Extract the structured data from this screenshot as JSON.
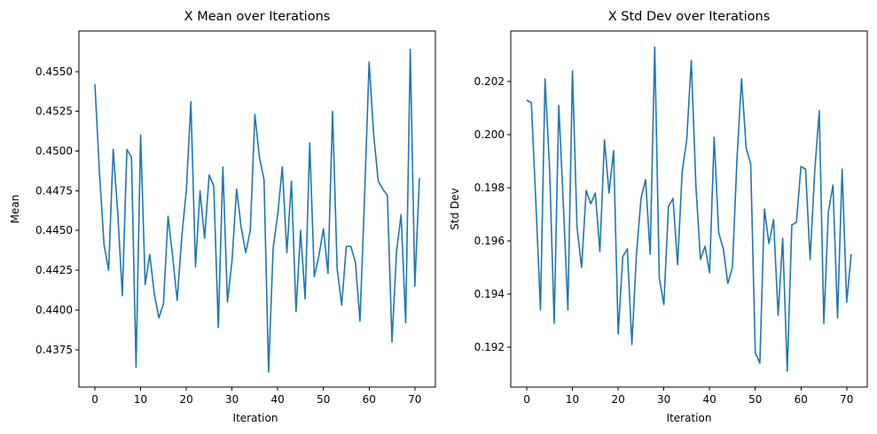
{
  "chart_data": [
    {
      "type": "line",
      "title": "X Mean over Iterations",
      "xlabel": "Iteration",
      "ylabel": "Mean",
      "xlim": [
        -3.5,
        74.5
      ],
      "ylim": [
        0.43515,
        0.45755
      ],
      "xticks": [
        0,
        10,
        20,
        30,
        40,
        50,
        60,
        70
      ],
      "yticks": [
        0.4375,
        0.44,
        0.4425,
        0.445,
        0.4475,
        0.45,
        0.4525,
        0.455
      ],
      "ytick_labels": [
        "0.4375",
        "0.4400",
        "0.4425",
        "0.4450",
        "0.4475",
        "0.4500",
        "0.4525",
        "0.4550"
      ],
      "color": "#1f77b4",
      "grid": false,
      "series": [
        {
          "x": [
            0,
            1,
            2,
            3,
            4,
            5,
            6,
            7,
            8,
            9,
            10,
            11,
            12,
            13,
            14,
            15,
            16,
            17,
            18,
            19,
            20,
            21,
            22,
            23,
            24,
            25,
            26,
            27,
            28,
            29,
            30,
            31,
            32,
            33,
            34,
            35,
            36,
            37,
            38,
            39,
            40,
            41,
            42,
            43,
            44,
            45,
            46,
            47,
            48,
            49,
            50,
            51,
            52,
            53,
            54,
            55,
            56,
            57,
            58,
            59,
            60,
            61,
            62,
            63,
            64,
            65,
            66,
            67,
            68,
            69,
            70,
            71
          ],
          "y": [
            0.4542,
            0.4486,
            0.4441,
            0.4425,
            0.4501,
            0.4461,
            0.4409,
            0.4501,
            0.4496,
            0.4364,
            0.451,
            0.4416,
            0.4435,
            0.441,
            0.4395,
            0.4404,
            0.4459,
            0.4434,
            0.4406,
            0.4446,
            0.4475,
            0.4531,
            0.4427,
            0.4475,
            0.4445,
            0.4485,
            0.4478,
            0.4389,
            0.449,
            0.4405,
            0.4431,
            0.4476,
            0.4452,
            0.4436,
            0.445,
            0.4523,
            0.4496,
            0.4482,
            0.4361,
            0.4439,
            0.446,
            0.449,
            0.4436,
            0.4481,
            0.4399,
            0.445,
            0.4407,
            0.4505,
            0.4421,
            0.4434,
            0.4451,
            0.4423,
            0.4525,
            0.4426,
            0.4403,
            0.444,
            0.444,
            0.443,
            0.4393,
            0.4471,
            0.4556,
            0.451,
            0.4481,
            0.4476,
            0.4472,
            0.438,
            0.4437,
            0.446,
            0.4392,
            0.4564,
            0.4415,
            0.4483
          ]
        }
      ]
    },
    {
      "type": "line",
      "title": "X Std Dev over Iterations",
      "xlabel": "Iteration",
      "ylabel": "Std Dev",
      "xlim": [
        -3.5,
        74.5
      ],
      "ylim": [
        0.1905,
        0.2039
      ],
      "xticks": [
        0,
        10,
        20,
        30,
        40,
        50,
        60,
        70
      ],
      "yticks": [
        0.192,
        0.194,
        0.196,
        0.198,
        0.2,
        0.202
      ],
      "ytick_labels": [
        "0.192",
        "0.194",
        "0.196",
        "0.198",
        "0.200",
        "0.202"
      ],
      "color": "#1f77b4",
      "grid": false,
      "series": [
        {
          "x": [
            0,
            1,
            2,
            3,
            4,
            5,
            6,
            7,
            8,
            9,
            10,
            11,
            12,
            13,
            14,
            15,
            16,
            17,
            18,
            19,
            20,
            21,
            22,
            23,
            24,
            25,
            26,
            27,
            28,
            29,
            30,
            31,
            32,
            33,
            34,
            35,
            36,
            37,
            38,
            39,
            40,
            41,
            42,
            43,
            44,
            45,
            46,
            47,
            48,
            49,
            50,
            51,
            52,
            53,
            54,
            55,
            56,
            57,
            58,
            59,
            60,
            61,
            62,
            63,
            64,
            65,
            66,
            67,
            68,
            69,
            70,
            71
          ],
          "y": [
            0.2013,
            0.2012,
            0.1974,
            0.1934,
            0.2021,
            0.1987,
            0.1929,
            0.2011,
            0.1974,
            0.1934,
            0.2024,
            0.1965,
            0.195,
            0.1979,
            0.1974,
            0.1978,
            0.1956,
            0.1998,
            0.1978,
            0.1994,
            0.1925,
            0.1954,
            0.1957,
            0.1921,
            0.1955,
            0.1976,
            0.1983,
            0.1955,
            0.2033,
            0.1946,
            0.1936,
            0.1973,
            0.1976,
            0.1951,
            0.1986,
            0.1998,
            0.2028,
            0.1981,
            0.1953,
            0.1958,
            0.1948,
            0.1999,
            0.1963,
            0.1957,
            0.1944,
            0.195,
            0.1991,
            0.2021,
            0.1995,
            0.1989,
            0.1918,
            0.1914,
            0.1972,
            0.1959,
            0.1968,
            0.1932,
            0.1961,
            0.1911,
            0.1966,
            0.1967,
            0.1988,
            0.1987,
            0.1953,
            0.1986,
            0.2009,
            0.1929,
            0.1971,
            0.1981,
            0.1931,
            0.1987,
            0.1937,
            0.1955
          ]
        }
      ]
    }
  ]
}
